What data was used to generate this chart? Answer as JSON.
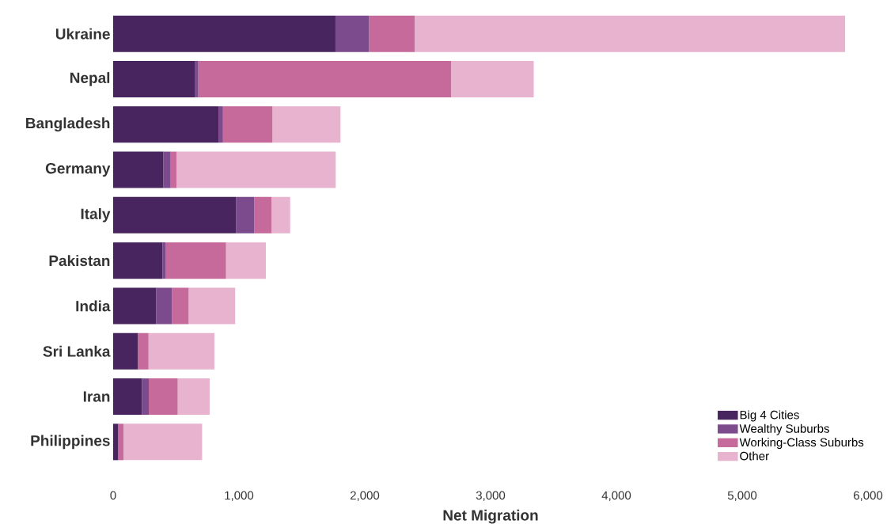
{
  "chart_data": {
    "type": "bar",
    "orientation": "horizontal",
    "stacked": true,
    "xlabel": "Net Migration",
    "categories": [
      "Ukraine",
      "Nepal",
      "Bangladesh",
      "Germany",
      "Italy",
      "Pakistan",
      "India",
      "Sri Lanka",
      "Iran",
      "Philippines"
    ],
    "series": [
      {
        "name": "Big 4 Cities",
        "color": "#48255e",
        "values": [
          1767,
          648,
          837,
          399,
          976,
          392,
          342,
          197,
          228,
          40
        ]
      },
      {
        "name": "Wealthy Suburbs",
        "color": "#7b4b8e",
        "values": [
          267,
          29,
          36,
          58,
          146,
          23,
          126,
          0,
          55,
          0
        ]
      },
      {
        "name": "Working-Class Suburbs",
        "color": "#c6699b",
        "values": [
          362,
          2009,
          393,
          47,
          137,
          482,
          132,
          84,
          230,
          42
        ]
      },
      {
        "name": "Other",
        "color": "#e8b3cf",
        "values": [
          3422,
          657,
          541,
          1265,
          148,
          317,
          370,
          524,
          254,
          625
        ]
      }
    ],
    "xlim": [
      0,
      6000
    ],
    "xticks": [
      0,
      {
        "value": 1000,
        "label": "1,000"
      },
      {
        "value": 2000,
        "label": "2,000"
      },
      {
        "value": 3000,
        "label": "3,000"
      },
      {
        "value": 4000,
        "label": "4,000"
      },
      {
        "value": 5000,
        "label": "5,000"
      },
      {
        "value": 6000,
        "label": "6,000"
      }
    ],
    "legend": "bottom right",
    "grid": false
  }
}
